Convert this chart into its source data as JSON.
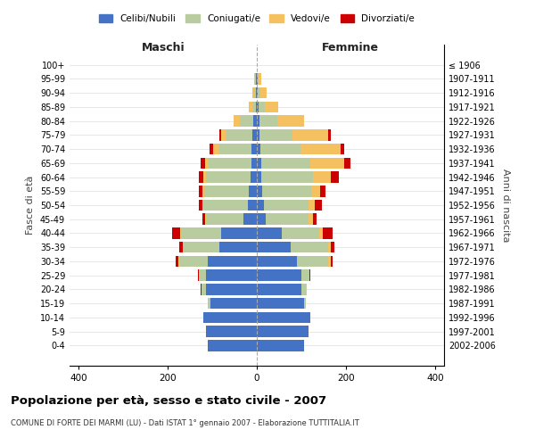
{
  "age_groups": [
    "0-4",
    "5-9",
    "10-14",
    "15-19",
    "20-24",
    "25-29",
    "30-34",
    "35-39",
    "40-44",
    "45-49",
    "50-54",
    "55-59",
    "60-64",
    "65-69",
    "70-74",
    "75-79",
    "80-84",
    "85-89",
    "90-94",
    "95-99",
    "100+"
  ],
  "birth_years": [
    "2002-2006",
    "1997-2001",
    "1992-1996",
    "1987-1991",
    "1982-1986",
    "1977-1981",
    "1972-1976",
    "1967-1971",
    "1962-1966",
    "1957-1961",
    "1952-1956",
    "1947-1951",
    "1942-1946",
    "1937-1941",
    "1932-1936",
    "1927-1931",
    "1922-1926",
    "1917-1921",
    "1912-1916",
    "1907-1911",
    "≤ 1906"
  ],
  "maschi_celibi": [
    110,
    115,
    120,
    105,
    115,
    115,
    110,
    85,
    80,
    30,
    20,
    18,
    15,
    13,
    12,
    10,
    8,
    3,
    2,
    2,
    0
  ],
  "maschi_coniugati": [
    0,
    0,
    0,
    5,
    10,
    15,
    65,
    80,
    90,
    85,
    100,
    100,
    100,
    95,
    75,
    60,
    30,
    8,
    4,
    2,
    0
  ],
  "maschi_vedovi": [
    0,
    0,
    0,
    0,
    0,
    0,
    2,
    2,
    2,
    2,
    3,
    5,
    5,
    8,
    12,
    10,
    15,
    8,
    5,
    2,
    0
  ],
  "maschi_divorziati": [
    0,
    0,
    0,
    0,
    2,
    2,
    5,
    8,
    18,
    5,
    8,
    8,
    10,
    10,
    8,
    5,
    0,
    0,
    0,
    0,
    0
  ],
  "femmine_celibi": [
    105,
    115,
    120,
    105,
    100,
    100,
    90,
    75,
    55,
    20,
    15,
    12,
    10,
    10,
    8,
    5,
    5,
    3,
    2,
    2,
    0
  ],
  "femmine_coniugati": [
    0,
    0,
    0,
    5,
    10,
    18,
    70,
    85,
    85,
    95,
    100,
    110,
    115,
    110,
    90,
    75,
    40,
    15,
    5,
    2,
    0
  ],
  "femmine_vedovi": [
    0,
    0,
    0,
    0,
    2,
    0,
    5,
    5,
    8,
    10,
    15,
    20,
    40,
    75,
    90,
    80,
    60,
    30,
    15,
    5,
    0
  ],
  "femmine_divorziati": [
    0,
    0,
    0,
    0,
    0,
    2,
    5,
    8,
    22,
    8,
    15,
    12,
    18,
    15,
    8,
    5,
    0,
    0,
    0,
    0,
    0
  ],
  "color_celibi": "#4472c4",
  "color_coniugati": "#b8cca0",
  "color_vedovi": "#f5c060",
  "color_divorziati": "#cc0000",
  "title": "Popolazione per età, sesso e stato civile - 2007",
  "subtitle": "COMUNE DI FORTE DEI MARMI (LU) - Dati ISTAT 1° gennaio 2007 - Elaborazione TUTTITALIA.IT",
  "xlabel_left": "Maschi",
  "xlabel_right": "Femmine",
  "ylabel_left": "Fasce di età",
  "ylabel_right": "Anni di nascita",
  "xlim": 420,
  "legend_labels": [
    "Celibi/Nubili",
    "Coniugati/e",
    "Vedovi/e",
    "Divorziati/e"
  ]
}
